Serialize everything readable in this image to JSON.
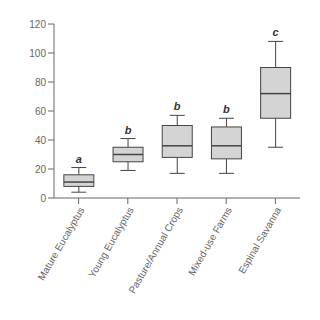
{
  "chart_data": {
    "type": "box",
    "categories": [
      "Mature Eucalyptus",
      "Young Eucalyptus",
      "Pasture/Annual Crops",
      "Mixed-use Farms",
      "Espinal Savanna"
    ],
    "whislo": [
      4,
      19,
      17,
      17,
      35
    ],
    "q1": [
      8,
      25,
      28,
      27,
      55
    ],
    "med": [
      11,
      30,
      36,
      36,
      72
    ],
    "q3": [
      16,
      35,
      50,
      49,
      90
    ],
    "whishi": [
      21,
      41,
      57,
      55,
      108
    ],
    "annotations": [
      "a",
      "b",
      "b",
      "b",
      "c"
    ],
    "color": "#d4d4d4",
    "ylim": [
      0,
      120
    ],
    "yticks": [
      0,
      20,
      40,
      60,
      80,
      100,
      120
    ]
  }
}
